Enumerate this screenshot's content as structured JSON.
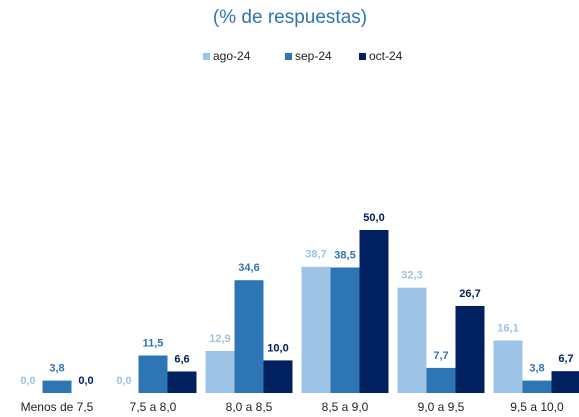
{
  "chart_data": {
    "type": "bar",
    "title": "(% de respuestas)",
    "categories": [
      "Menos de 7,5",
      "7,5 a 8,0",
      "8,0 a 8,5",
      "8,5 a 9,0",
      "9,0 a 9,5",
      "9,5 a 10,0"
    ],
    "series": [
      {
        "name": "ago-24",
        "color": "#9dc3e6",
        "values": [
          0.0,
          0.0,
          12.9,
          38.7,
          32.3,
          16.1
        ],
        "value_labels": [
          "0,0",
          "0,0",
          "12,9",
          "38,7",
          "32,3",
          "16,1"
        ]
      },
      {
        "name": "sep-24",
        "color": "#2e75b6",
        "values": [
          3.8,
          11.5,
          34.6,
          38.5,
          7.7,
          3.8
        ],
        "value_labels": [
          "3,8",
          "11,5",
          "34,6",
          "38,5",
          "7,7",
          "3,8"
        ]
      },
      {
        "name": "oct-24",
        "color": "#002060",
        "values": [
          0.0,
          6.6,
          10.0,
          50.0,
          26.7,
          6.7
        ],
        "value_labels": [
          "0,0",
          "6,6",
          "10,0",
          "50,0",
          "26,7",
          "6,7"
        ]
      }
    ]
  }
}
